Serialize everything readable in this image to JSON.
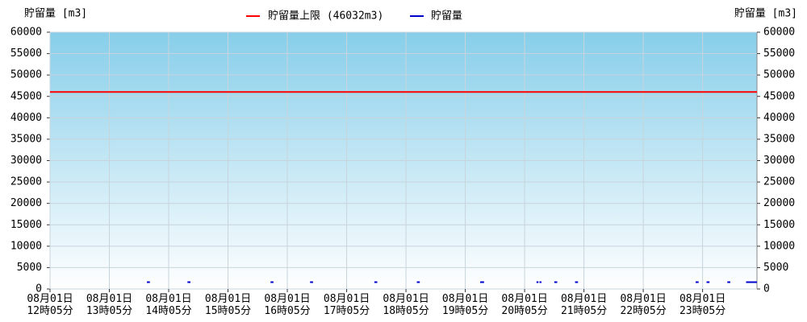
{
  "chart_data": {
    "type": "line",
    "ylabel": "貯留量 [m3]",
    "y2label": "貯留量 [m3]",
    "xlim": [
      725,
      1440
    ],
    "xticks": [
      {
        "value": 725,
        "label": "08月01日\n12時05分"
      },
      {
        "value": 785,
        "label": "08月01日\n13時05分"
      },
      {
        "value": 845,
        "label": "08月01日\n14時05分"
      },
      {
        "value": 905,
        "label": "08月01日\n15時05分"
      },
      {
        "value": 965,
        "label": "08月01日\n16時05分"
      },
      {
        "value": 1025,
        "label": "08月01日\n17時05分"
      },
      {
        "value": 1085,
        "label": "08月01日\n18時05分"
      },
      {
        "value": 1145,
        "label": "08月01日\n19時05分"
      },
      {
        "value": 1205,
        "label": "08月01日\n20時05分"
      },
      {
        "value": 1265,
        "label": "08月01日\n21時05分"
      },
      {
        "value": 1325,
        "label": "08月01日\n22時05分"
      },
      {
        "value": 1385,
        "label": "08月01日\n23時05分"
      }
    ],
    "ylim": [
      0,
      60000
    ],
    "yticks": [
      0,
      5000,
      10000,
      15000,
      20000,
      25000,
      30000,
      35000,
      40000,
      45000,
      50000,
      55000,
      60000
    ],
    "y2lim": [
      0,
      60000
    ],
    "y2ticks": [
      0,
      5000,
      10000,
      15000,
      20000,
      25000,
      30000,
      35000,
      40000,
      45000,
      50000,
      55000,
      60000
    ],
    "grid": true,
    "limit": {
      "name": "貯留量上限 (46032m3)",
      "color": "#ff0000",
      "value": 46032
    },
    "series": [
      {
        "name": "貯留量",
        "color": "#0000cc",
        "x": [
          823,
          826,
          null,
          864,
          867,
          null,
          948,
          951,
          null,
          988,
          991,
          null,
          1053,
          1056,
          null,
          1096,
          1099,
          null,
          1160,
          1164,
          null,
          1217,
          1219,
          null,
          1220,
          1222,
          null,
          1235,
          1238,
          null,
          1256,
          1259,
          null,
          1378,
          1381,
          null,
          1389,
          1392,
          null,
          1410,
          1413,
          null,
          1429,
          1440
        ],
        "values": [
          1600,
          1600,
          null,
          1600,
          1600,
          null,
          1600,
          1600,
          null,
          1600,
          1600,
          null,
          1600,
          1600,
          null,
          1600,
          1600,
          null,
          1600,
          1600,
          null,
          1600,
          1600,
          null,
          1600,
          1600,
          null,
          1600,
          1600,
          null,
          1600,
          1600,
          null,
          1600,
          1600,
          null,
          1600,
          1600,
          null,
          1600,
          1600,
          null,
          1600,
          1600
        ]
      }
    ]
  }
}
